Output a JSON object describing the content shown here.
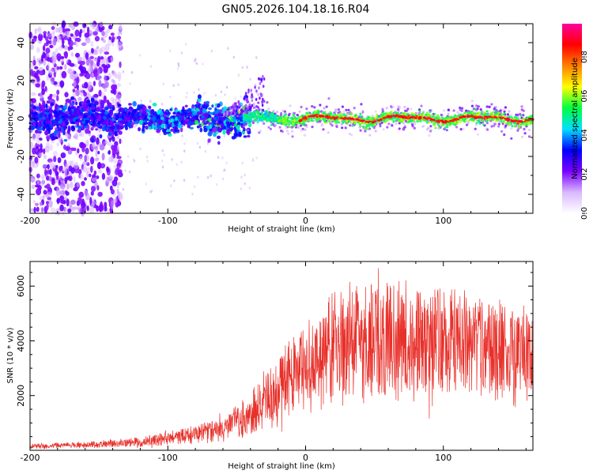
{
  "title": "GN05.2026.104.18.16.R04",
  "chart_data": [
    {
      "type": "heatmap",
      "name": "spectrogram",
      "xlabel": "Height of straight line (km)",
      "ylabel": "Frequency (Hz)",
      "xlim": [
        -200,
        165
      ],
      "ylim": [
        -50,
        50
      ],
      "xticks": [
        -200,
        -100,
        0,
        100
      ],
      "xtick_labels": [
        "-200",
        "-100",
        "0",
        "100"
      ],
      "yticks": [
        -40,
        -20,
        0,
        20,
        40
      ],
      "ytick_labels": [
        "-40",
        "-20",
        "0",
        "20",
        "40"
      ],
      "colorbar": {
        "label": "Normalized spectral amplitude",
        "range": [
          0,
          0.97
        ],
        "ticks": [
          0.0,
          0.2,
          0.4,
          0.6,
          0.8
        ],
        "tick_labels": [
          "0.0",
          "0.2",
          "0.4",
          "0.6",
          "0.8"
        ],
        "colors": [
          "#ffffff",
          "#d9b8ff",
          "#7a00ff",
          "#0000ff",
          "#00e0ff",
          "#00ff40",
          "#ffff00",
          "#ff8000",
          "#ff0000",
          "#ff00a0"
        ]
      },
      "description_points": {
        "noise_region_x": [
          -200,
          -135
        ],
        "band_center_x": [
          -200,
          165
        ],
        "band_center_freq": [
          0,
          0
        ],
        "spike_near_x": -32,
        "spike_max_freq": 27
      }
    },
    {
      "type": "line",
      "name": "snr",
      "xlabel": "Height of straight line (km)",
      "ylabel": "SNR (10 * v/v)",
      "xlim": [
        -200,
        165
      ],
      "ylim": [
        0,
        6900
      ],
      "xticks": [
        -200,
        -100,
        0,
        100
      ],
      "xtick_labels": [
        "-200",
        "-100",
        "0",
        "100"
      ],
      "yticks": [
        2000,
        4000,
        6000
      ],
      "ytick_labels": [
        "2000",
        "4000",
        "6000"
      ],
      "color": "#e8302a",
      "envelope": {
        "x": [
          -200,
          -160,
          -120,
          -100,
          -80,
          -60,
          -40,
          -30,
          -20,
          -10,
          0,
          10,
          20,
          30,
          50,
          70,
          90,
          110,
          130,
          150,
          165
        ],
        "mean": [
          150,
          200,
          300,
          450,
          600,
          800,
          1200,
          1800,
          2300,
          2800,
          3000,
          3400,
          3800,
          4000,
          4100,
          4000,
          4000,
          3900,
          3800,
          3600,
          3500
        ],
        "spread": [
          100,
          120,
          200,
          300,
          400,
          500,
          800,
          1200,
          1500,
          1700,
          1800,
          2000,
          2200,
          2400,
          2500,
          2400,
          2400,
          2300,
          2200,
          2000,
          1800
        ]
      }
    }
  ]
}
